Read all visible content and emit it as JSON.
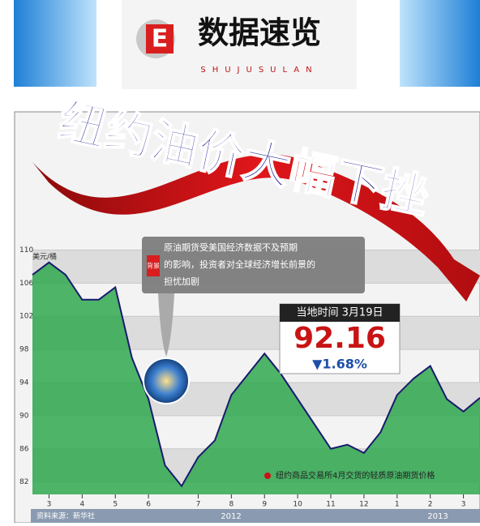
{
  "header": {
    "logo_letter": "E",
    "title": "数据速览",
    "subtitle": "SHUJUSULAN"
  },
  "chart_data": {
    "type": "line",
    "title": "纽约油价大幅下挫",
    "y_label": "美元/桶",
    "note_tag": "背景",
    "note": [
      "原油期货受美国经济数据不及预期",
      "的影响，投资者对全球经济增长前景的",
      "担忧加剧"
    ],
    "callout": {
      "date": "当地时间 3月19日",
      "price": "92.16",
      "change": "▼1.68%"
    },
    "categories": [
      null,
      "3",
      null,
      "4",
      null,
      "5",
      null,
      "6",
      null,
      null,
      "7",
      null,
      "8",
      null,
      "9",
      null,
      "10",
      null,
      "11",
      null,
      "12",
      null,
      "1",
      null,
      "2",
      null,
      "3",
      null
    ],
    "series": [
      {
        "name": "纽约商品交易所4月交货的轻质原油期货价格",
        "color": "#1a1a6e",
        "values": [
          107,
          108.5,
          107,
          104,
          104,
          105.5,
          97,
          92,
          84,
          81.5,
          85,
          87,
          92.5,
          95,
          97.5,
          95,
          92,
          89,
          86,
          86.5,
          85.5,
          88,
          92.5,
          94.5,
          96,
          92,
          90.5,
          92.16
        ]
      }
    ],
    "area_color": "#2fa84f",
    "ylim": [
      80.5,
      112
    ],
    "yticks": [
      110,
      106,
      102,
      98,
      94,
      90,
      86,
      82
    ],
    "grid": true,
    "years": [
      "2012",
      "2013"
    ],
    "source": "资料来源：新华社"
  }
}
